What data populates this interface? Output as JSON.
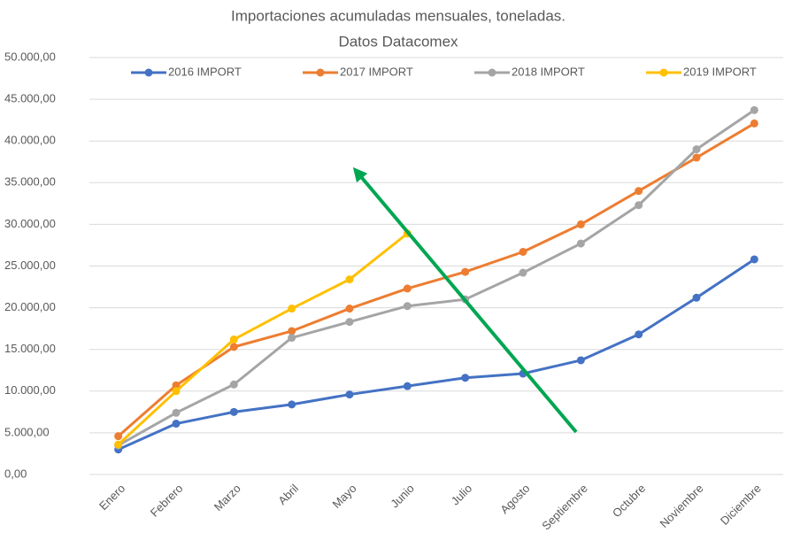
{
  "chart_data": {
    "type": "line",
    "title": [
      "Importaciones acumuladas mensuales, toneladas.",
      "Datos Datacomex"
    ],
    "categories": [
      "Enero",
      "Febrero",
      "Marzo",
      "Abril",
      "Mayo",
      "Junio",
      "Julio",
      "Agosto",
      "Septiembre",
      "Octubre",
      "Noviembre",
      "Diciembre"
    ],
    "series": [
      {
        "name": "2016 IMPORT",
        "color": "#4472c4",
        "values": [
          3000,
          6100,
          7500,
          8400,
          9600,
          10600,
          11600,
          12100,
          13700,
          16800,
          21200,
          25800
        ]
      },
      {
        "name": "2017 IMPORT",
        "color": "#ed7d31",
        "values": [
          4600,
          10700,
          15300,
          17200,
          19900,
          22300,
          24300,
          26700,
          30000,
          34000,
          38000,
          42100
        ]
      },
      {
        "name": "2018 IMPORT",
        "color": "#a5a5a5",
        "values": [
          3500,
          7400,
          10800,
          16400,
          18300,
          20200,
          21000,
          24200,
          27700,
          32300,
          39000,
          43700
        ]
      },
      {
        "name": "2019 IMPORT",
        "color": "#ffc000",
        "values": [
          3600,
          10000,
          16200,
          19900,
          23400,
          28900,
          null,
          null,
          null,
          null,
          null,
          null
        ]
      }
    ],
    "ylim": [
      0,
      50000
    ],
    "yticks": [
      {
        "value": 0,
        "label": "0,00"
      },
      {
        "value": 5000,
        "label": "5.000,00"
      },
      {
        "value": 10000,
        "label": "10.000,00"
      },
      {
        "value": 15000,
        "label": "15.000,00"
      },
      {
        "value": 20000,
        "label": "20.000,00"
      },
      {
        "value": 25000,
        "label": "25.000,00"
      },
      {
        "value": 30000,
        "label": "30.000,00"
      },
      {
        "value": 35000,
        "label": "35.000,00"
      },
      {
        "value": 40000,
        "label": "40.000,00"
      },
      {
        "value": 45000,
        "label": "45.000,00"
      },
      {
        "value": 50000,
        "label": "50.000,00"
      }
    ],
    "grid": true,
    "legend": "top"
  }
}
